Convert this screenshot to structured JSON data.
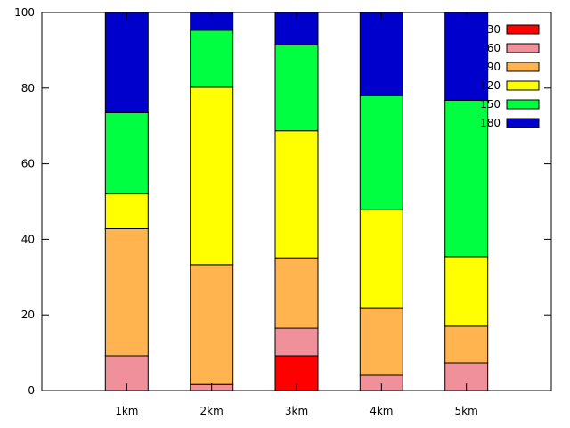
{
  "chart_data": {
    "type": "bar",
    "stacked": true,
    "title": "",
    "xlabel": "",
    "ylabel": "",
    "ylim": [
      0,
      100
    ],
    "yticks": [
      0,
      20,
      40,
      60,
      80,
      100
    ],
    "grid": false,
    "legend": "top-right",
    "categories": [
      "1km",
      "2km",
      "3km",
      "4km",
      "5km"
    ],
    "series": [
      {
        "name": "30",
        "color": "#ff0000",
        "values": [
          0,
          0,
          9.2,
          0,
          0
        ]
      },
      {
        "name": "60",
        "color": "#f0909a",
        "values": [
          9.2,
          1.6,
          7.3,
          4.0,
          7.3
        ]
      },
      {
        "name": "90",
        "color": "#ffb450",
        "values": [
          33.6,
          31.7,
          18.6,
          17.9,
          9.7
        ]
      },
      {
        "name": "120",
        "color": "#ffff00",
        "values": [
          9.2,
          46.9,
          33.6,
          25.9,
          18.4
        ]
      },
      {
        "name": "150",
        "color": "#00ff40",
        "values": [
          21.5,
          15.1,
          22.7,
          30.2,
          41.4
        ]
      },
      {
        "name": "180",
        "color": "#0000cc",
        "values": [
          26.5,
          4.7,
          8.6,
          22.0,
          23.2
        ]
      }
    ]
  }
}
